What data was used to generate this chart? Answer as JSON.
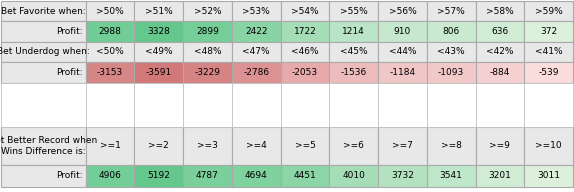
{
  "table1": {
    "label": "Bet Favorite when:",
    "headers": [
      ">50%",
      ">51%",
      ">52%",
      ">53%",
      ">54%",
      ">55%",
      ">56%",
      ">57%",
      ">58%",
      ">59%"
    ],
    "profits": [
      2988,
      3328,
      2899,
      2422,
      1722,
      1214,
      910,
      806,
      636,
      372
    ],
    "profit_label": "Profit:"
  },
  "table2": {
    "label": "Bet Underdog when:",
    "headers": [
      "<50%",
      "<49%",
      "<48%",
      "<47%",
      "<46%",
      "<45%",
      "<44%",
      "<43%",
      "<42%",
      "<41%"
    ],
    "profits": [
      -3153,
      -3591,
      -3229,
      -2786,
      -2053,
      -1536,
      -1184,
      -1093,
      -884,
      -539
    ],
    "profit_label": "Profit:"
  },
  "table3": {
    "label": "Bet Better Record when\nWins Difference is:",
    "headers": [
      ">=1",
      ">=2",
      ">=3",
      ">=4",
      ">=5",
      ">=6",
      ">=7",
      ">=8",
      ">=9",
      ">=10"
    ],
    "profits": [
      4906,
      5192,
      4787,
      4694,
      4451,
      4010,
      3732,
      3541,
      3201,
      3011
    ],
    "profit_label": "Profit:"
  },
  "fig_w": 5.74,
  "fig_h": 1.92,
  "dpi": 100,
  "font_size": 6.5,
  "border_color": "#aaaaaa",
  "label_bg": "#e8e8e8",
  "header_bg": "#e8e8e8",
  "profit_label_bg": "#e8e8e8",
  "gap_bg": "#cccccc"
}
